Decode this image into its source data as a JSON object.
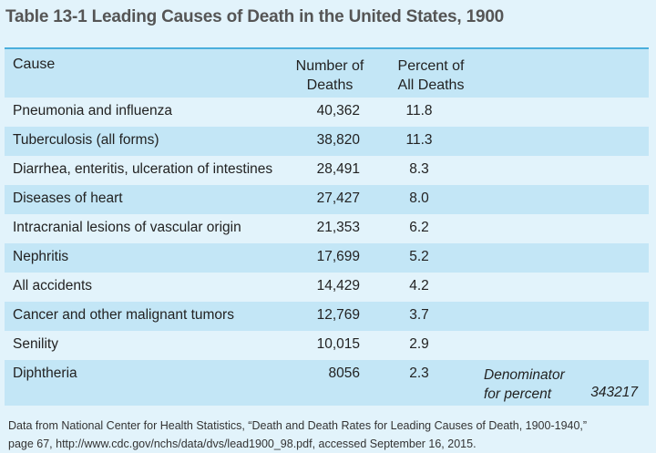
{
  "title": "Table 13-1  Leading Causes of Death in the United States, 1900",
  "headers": {
    "cause": "Cause",
    "deaths_1": "Number of",
    "deaths_2": "Deaths",
    "pct_1": "Percent of",
    "pct_2": "All Deaths"
  },
  "rows": [
    {
      "cause": "Pneumonia and influenza",
      "deaths": "40,362",
      "pct": "11.8"
    },
    {
      "cause": "Tuberculosis (all forms)",
      "deaths": "38,820",
      "pct": "11.3"
    },
    {
      "cause": "Diarrhea, enteritis, ulceration of intestines",
      "deaths": "28,491",
      "pct": "8.3"
    },
    {
      "cause": "Diseases of heart",
      "deaths": "27,427",
      "pct": "8.0"
    },
    {
      "cause": "Intracranial lesions of vascular origin",
      "deaths": "21,353",
      "pct": "6.2"
    },
    {
      "cause": "Nephritis",
      "deaths": "17,699",
      "pct": "5.2"
    },
    {
      "cause": "All accidents",
      "deaths": "14,429",
      "pct": "4.2"
    },
    {
      "cause": "Cancer and other malignant tumors",
      "deaths": "12,769",
      "pct": "3.7"
    },
    {
      "cause": "Senility",
      "deaths": "10,015",
      "pct": "2.9"
    },
    {
      "cause": "Diphtheria",
      "deaths": "8056",
      "pct": "2.3"
    }
  ],
  "denominator": {
    "label_1": "Denominator",
    "label_2": "for percent",
    "value": "343217"
  },
  "footnote": {
    "line1": "Data from National Center for Health Statistics, “Death and Death Rates for Leading Causes of Death, 1900-1940,”",
    "line2": "page 67, http://www.cdc.gov/nchs/data/dvs/lead1900_98.pdf, accessed September 16, 2015."
  }
}
